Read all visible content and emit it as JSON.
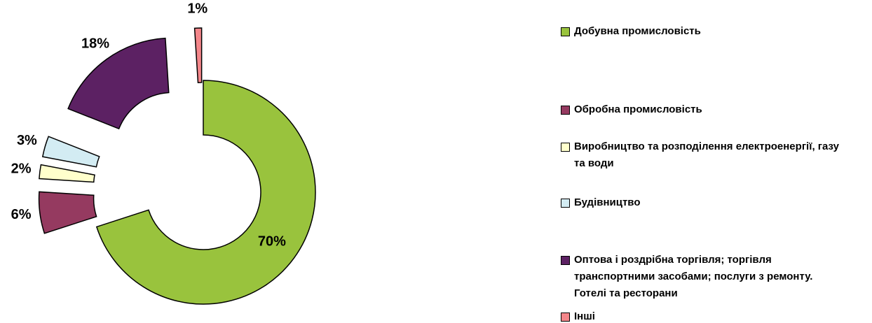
{
  "chart_data": {
    "type": "donut",
    "categories": [
      "Добувна промисловість",
      "Обробна промисловість",
      "Виробництво та розподілення електроенергії, газу та води",
      "Будівництво",
      "Оптова і роздрібна торгівля; торгівля транспортними засобами; послуги з ремонту. Готелі та ресторани",
      "Інші"
    ],
    "values": [
      70,
      6,
      2,
      3,
      18,
      1
    ],
    "value_labels": [
      "70%",
      "6%",
      "2%",
      "3%",
      "18%",
      "1%"
    ],
    "colors": [
      "#99c33d",
      "#953a60",
      "#ffffcc",
      "#d3ecf3",
      "#5c2163",
      "#f4868a"
    ],
    "legend": "right"
  }
}
